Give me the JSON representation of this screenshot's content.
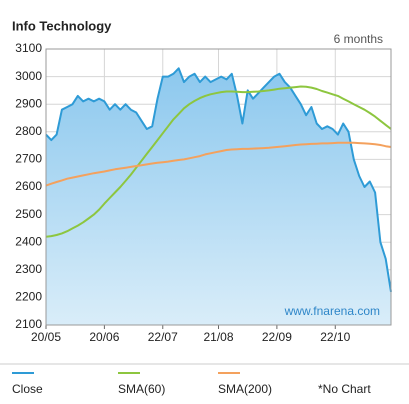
{
  "chart_data": {
    "type": "line",
    "title": "Info Technology",
    "subtitle": "6 months",
    "watermark": "www.fnarena.com",
    "legend_note": "*No Chart",
    "xlim": [
      0,
      65
    ],
    "xticks": [
      {
        "value": 0,
        "label": "20/05"
      },
      {
        "value": 11,
        "label": "20/06"
      },
      {
        "value": 22,
        "label": "22/07"
      },
      {
        "value": 32.5,
        "label": "21/08"
      },
      {
        "value": 43.5,
        "label": "22/09"
      },
      {
        "value": 54.5,
        "label": "22/10"
      }
    ],
    "ylim": [
      2100,
      3100
    ],
    "yticks": [
      2100,
      2200,
      2300,
      2400,
      2500,
      2600,
      2700,
      2800,
      2900,
      3000,
      3100
    ],
    "grid": true,
    "series": [
      {
        "name": "Close",
        "color": "#2e9bd6",
        "fill": true,
        "values": [
          2790,
          2770,
          2790,
          2880,
          2890,
          2900,
          2930,
          2910,
          2920,
          2910,
          2920,
          2910,
          2880,
          2900,
          2880,
          2900,
          2880,
          2870,
          2840,
          2810,
          2820,
          2920,
          3000,
          3000,
          3010,
          3030,
          2980,
          3000,
          3010,
          2980,
          3000,
          2980,
          2990,
          3000,
          2990,
          3010,
          2930,
          2830,
          2950,
          2920,
          2940,
          2960,
          2980,
          3000,
          3010,
          2980,
          2960,
          2930,
          2900,
          2860,
          2890,
          2830,
          2810,
          2820,
          2810,
          2790,
          2830,
          2800,
          2700,
          2640,
          2600,
          2620,
          2580,
          2400,
          2340,
          2220
        ]
      },
      {
        "name": "SMA(60)",
        "color": "#8dc63f",
        "values": [
          2420,
          2422,
          2426,
          2432,
          2440,
          2450,
          2460,
          2472,
          2486,
          2500,
          2518,
          2540,
          2560,
          2580,
          2600,
          2622,
          2645,
          2670,
          2695,
          2720,
          2745,
          2770,
          2795,
          2820,
          2845,
          2865,
          2885,
          2900,
          2912,
          2922,
          2930,
          2936,
          2940,
          2944,
          2946,
          2946,
          2945,
          2944,
          2944,
          2945,
          2946,
          2948,
          2950,
          2953,
          2956,
          2958,
          2960,
          2962,
          2964,
          2963,
          2960,
          2955,
          2948,
          2942,
          2936,
          2930,
          2920,
          2910,
          2900,
          2890,
          2880,
          2868,
          2855,
          2840,
          2825,
          2810
        ]
      },
      {
        "name": "SMA(200)",
        "color": "#f4a15d",
        "values": [
          2605,
          2612,
          2618,
          2624,
          2630,
          2634,
          2638,
          2642,
          2646,
          2650,
          2653,
          2656,
          2660,
          2664,
          2667,
          2670,
          2673,
          2676,
          2679,
          2682,
          2685,
          2688,
          2690,
          2692,
          2695,
          2698,
          2700,
          2704,
          2708,
          2712,
          2718,
          2722,
          2726,
          2730,
          2734,
          2736,
          2737,
          2738,
          2738,
          2739,
          2740,
          2741,
          2742,
          2744,
          2746,
          2748,
          2750,
          2752,
          2754,
          2755,
          2756,
          2757,
          2758,
          2758,
          2759,
          2760,
          2760,
          2760,
          2760,
          2759,
          2758,
          2757,
          2755,
          2752,
          2748,
          2745
        ]
      }
    ]
  }
}
